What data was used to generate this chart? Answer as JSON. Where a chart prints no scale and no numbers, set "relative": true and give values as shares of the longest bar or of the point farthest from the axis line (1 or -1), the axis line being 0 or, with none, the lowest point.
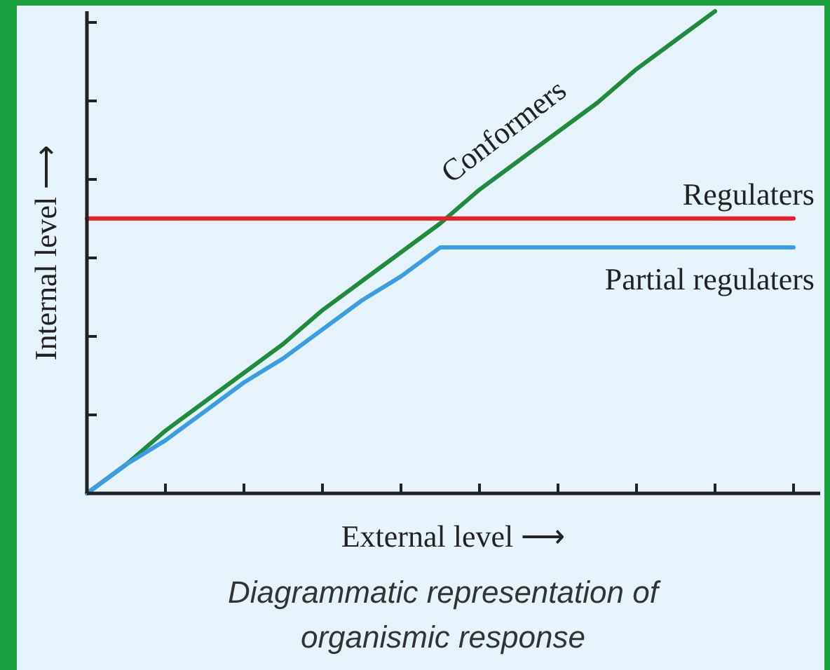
{
  "chart_data": {
    "type": "line",
    "relative": true,
    "xlabel": "External level ⟶",
    "ylabel": "Internal level ⟶",
    "annotations": [
      "Diagrammatic representation of organismic response"
    ],
    "categories": [
      null,
      null,
      null,
      null,
      null,
      null,
      null,
      null,
      null,
      null,
      null,
      null,
      null,
      null,
      null,
      null,
      null,
      null,
      null
    ],
    "grid": false,
    "line_style": "solid",
    "series": [
      {
        "name": "Conformers",
        "color": "#1e8c3a",
        "values": [
          0,
          0.06,
          0.13,
          0.19,
          0.25,
          0.31,
          0.38,
          0.44,
          0.5,
          0.56,
          0.63,
          0.69,
          0.75,
          0.81,
          0.88,
          0.94,
          1,
          null,
          null
        ]
      },
      {
        "name": "Regulaters",
        "color": "#e8202a",
        "values": [
          0.57,
          0.57,
          0.57,
          0.57,
          0.57,
          0.57,
          0.57,
          0.57,
          0.57,
          0.57,
          0.57,
          0.57,
          0.57,
          0.57,
          0.57,
          0.57,
          0.57,
          0.57,
          0.57
        ]
      },
      {
        "name": "Partial regulaters",
        "color": "#3a9ee6",
        "values": [
          0,
          0.06,
          0.11,
          0.17,
          0.23,
          0.28,
          0.34,
          0.4,
          0.45,
          0.51,
          0.51,
          0.51,
          0.51,
          0.51,
          0.51,
          0.51,
          0.51,
          0.51,
          0.51
        ]
      }
    ]
  }
}
